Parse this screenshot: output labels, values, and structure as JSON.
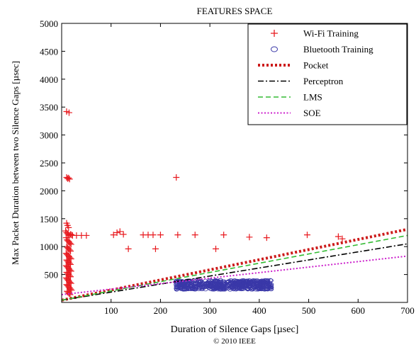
{
  "copyright": "© 2010 IEEE",
  "chart_data": {
    "type": "scatter",
    "title": "FEATURES SPACE",
    "xlabel": "Duration of Silence Gaps [µsec]",
    "ylabel": "Max Packet Duration between two Silence Gaps [µsec]",
    "xlim": [
      0,
      700
    ],
    "ylim": [
      0,
      5000
    ],
    "xticks": [
      100,
      200,
      300,
      400,
      500,
      600,
      700
    ],
    "yticks": [
      500,
      1000,
      1500,
      2000,
      2500,
      3000,
      3500,
      4000,
      4500,
      5000
    ],
    "legend_position": "top-right",
    "grid": false,
    "series": [
      {
        "name": "Wi-Fi Training",
        "kind": "points",
        "marker": "plus",
        "color": "#e8191e",
        "points": [
          [
            10,
            3420
          ],
          [
            15,
            3400
          ],
          [
            10,
            2240
          ],
          [
            12,
            2220
          ],
          [
            14,
            2230
          ],
          [
            16,
            2210
          ],
          [
            10,
            1420
          ],
          [
            12,
            1380
          ],
          [
            14,
            1340
          ],
          [
            8,
            1280
          ],
          [
            10,
            1250
          ],
          [
            12,
            1230
          ],
          [
            14,
            1210
          ],
          [
            16,
            1200
          ],
          [
            18,
            1220
          ],
          [
            20,
            1210
          ],
          [
            22,
            1200
          ],
          [
            9,
            1160
          ],
          [
            11,
            1120
          ],
          [
            13,
            1100
          ],
          [
            15,
            1080
          ],
          [
            17,
            1060
          ],
          [
            19,
            1040
          ],
          [
            10,
            1000
          ],
          [
            12,
            980
          ],
          [
            14,
            960
          ],
          [
            16,
            940
          ],
          [
            18,
            920
          ],
          [
            9,
            880
          ],
          [
            11,
            860
          ],
          [
            13,
            840
          ],
          [
            15,
            820
          ],
          [
            17,
            800
          ],
          [
            19,
            780
          ],
          [
            10,
            760
          ],
          [
            12,
            740
          ],
          [
            14,
            720
          ],
          [
            16,
            700
          ],
          [
            18,
            680
          ],
          [
            9,
            660
          ],
          [
            11,
            640
          ],
          [
            13,
            620
          ],
          [
            15,
            600
          ],
          [
            17,
            580
          ],
          [
            19,
            560
          ],
          [
            10,
            540
          ],
          [
            12,
            520
          ],
          [
            14,
            500
          ],
          [
            16,
            480
          ],
          [
            18,
            460
          ],
          [
            9,
            440
          ],
          [
            11,
            420
          ],
          [
            13,
            400
          ],
          [
            15,
            380
          ],
          [
            17,
            360
          ],
          [
            19,
            340
          ],
          [
            10,
            320
          ],
          [
            12,
            300
          ],
          [
            14,
            280
          ],
          [
            16,
            260
          ],
          [
            18,
            240
          ],
          [
            20,
            220
          ],
          [
            11,
            200
          ],
          [
            13,
            180
          ],
          [
            15,
            160
          ],
          [
            17,
            140
          ],
          [
            30,
            1200
          ],
          [
            40,
            1200
          ],
          [
            50,
            1200
          ],
          [
            105,
            1210
          ],
          [
            112,
            1250
          ],
          [
            118,
            1270
          ],
          [
            125,
            1220
          ],
          [
            135,
            960
          ],
          [
            165,
            1210
          ],
          [
            175,
            1210
          ],
          [
            185,
            1210
          ],
          [
            190,
            960
          ],
          [
            200,
            1210
          ],
          [
            232,
            2240
          ],
          [
            235,
            1210
          ],
          [
            270,
            1210
          ],
          [
            312,
            960
          ],
          [
            328,
            1210
          ],
          [
            380,
            1170
          ],
          [
            415,
            1160
          ],
          [
            497,
            1210
          ],
          [
            560,
            1180
          ],
          [
            568,
            1140
          ]
        ]
      },
      {
        "name": "Bluetooth Training",
        "kind": "points",
        "marker": "circle",
        "color": "#3a38a8",
        "x_range": [
          232,
          425
        ],
        "y_range": [
          230,
          400
        ],
        "count": 600
      },
      {
        "name": "Pocket",
        "kind": "line",
        "color": "#cc1a1a",
        "style": "dotted-thick",
        "points": [
          [
            0,
            40
          ],
          [
            700,
            1310
          ]
        ]
      },
      {
        "name": "Perceptron",
        "kind": "line",
        "color": "#000000",
        "style": "dashdot",
        "points": [
          [
            0,
            40
          ],
          [
            700,
            1050
          ]
        ]
      },
      {
        "name": "LMS",
        "kind": "line",
        "color": "#33bb33",
        "style": "dashed",
        "points": [
          [
            0,
            40
          ],
          [
            700,
            1200
          ]
        ]
      },
      {
        "name": "SOE",
        "kind": "line",
        "color": "#cc22cc",
        "style": "dotted",
        "points": [
          [
            0,
            140
          ],
          [
            700,
            830
          ]
        ]
      }
    ]
  }
}
